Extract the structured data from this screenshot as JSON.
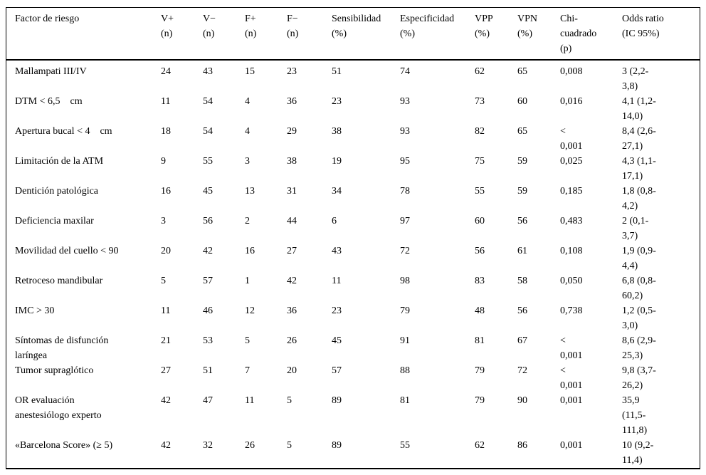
{
  "colors": {
    "text": "#000000",
    "rule": "#000000",
    "background": "#ffffff"
  },
  "table": {
    "columns": [
      {
        "key": "factor",
        "label": "Factor de riesgo"
      },
      {
        "key": "v_pos",
        "label": "V+\n(n)"
      },
      {
        "key": "v_neg",
        "label": "V−\n(n)"
      },
      {
        "key": "f_pos",
        "label": "F+\n(n)"
      },
      {
        "key": "f_neg",
        "label": "F−\n(n)"
      },
      {
        "key": "sensibilidad",
        "label": "Sensibilidad\n(%)"
      },
      {
        "key": "especificidad",
        "label": "Especificidad\n(%)"
      },
      {
        "key": "vpp",
        "label": "VPP\n(%)"
      },
      {
        "key": "vpn",
        "label": "VPN\n(%)"
      },
      {
        "key": "chi_p",
        "label": "Chi-\ncuadrado\n(p)"
      },
      {
        "key": "odds_ratio",
        "label": "Odds ratio\n(IC 95%)"
      }
    ],
    "rows": [
      {
        "factor": "Mallampati III/IV",
        "v_pos": "24",
        "v_neg": "43",
        "f_pos": "15",
        "f_neg": "23",
        "sensibilidad": "51",
        "especificidad": "74",
        "vpp": "62",
        "vpn": "65",
        "chi_p": "0,008",
        "odds_ratio": "3 (2,2-\n3,8)"
      },
      {
        "factor": "DTM < 6,5    cm",
        "v_pos": "11",
        "v_neg": "54",
        "f_pos": "4",
        "f_neg": "36",
        "sensibilidad": "23",
        "especificidad": "93",
        "vpp": "73",
        "vpn": "60",
        "chi_p": "0,016",
        "odds_ratio": "4,1 (1,2-\n14,0)"
      },
      {
        "factor": "Apertura bucal < 4    cm",
        "v_pos": "18",
        "v_neg": "54",
        "f_pos": "4",
        "f_neg": "29",
        "sensibilidad": "38",
        "especificidad": "93",
        "vpp": "82",
        "vpn": "65",
        "chi_p": "<\n0,001",
        "odds_ratio": "8,4 (2,6-\n27,1)"
      },
      {
        "factor": "Limitación de la ATM",
        "v_pos": "9",
        "v_neg": "55",
        "f_pos": "3",
        "f_neg": "38",
        "sensibilidad": "19",
        "especificidad": "95",
        "vpp": "75",
        "vpn": "59",
        "chi_p": "0,025",
        "odds_ratio": "4,3 (1,1-\n17,1)"
      },
      {
        "factor": "Dentición patológica",
        "v_pos": "16",
        "v_neg": "45",
        "f_pos": "13",
        "f_neg": "31",
        "sensibilidad": "34",
        "especificidad": "78",
        "vpp": "55",
        "vpn": "59",
        "chi_p": "0,185",
        "odds_ratio": "1,8 (0,8-\n4,2)"
      },
      {
        "factor": "Deficiencia maxilar",
        "v_pos": "3",
        "v_neg": "56",
        "f_pos": "2",
        "f_neg": "44",
        "sensibilidad": "6",
        "especificidad": "97",
        "vpp": "60",
        "vpn": "56",
        "chi_p": "0,483",
        "odds_ratio": "2 (0,1-\n3,7)"
      },
      {
        "factor": "Movilidad del cuello < 90",
        "v_pos": "20",
        "v_neg": "42",
        "f_pos": "16",
        "f_neg": "27",
        "sensibilidad": "43",
        "especificidad": "72",
        "vpp": "56",
        "vpn": "61",
        "chi_p": "0,108",
        "odds_ratio": "1,9 (0,9-\n4,4)"
      },
      {
        "factor": "Retroceso mandibular",
        "v_pos": "5",
        "v_neg": "57",
        "f_pos": "1",
        "f_neg": "42",
        "sensibilidad": "11",
        "especificidad": "98",
        "vpp": "83",
        "vpn": "58",
        "chi_p": "0,050",
        "odds_ratio": "6,8 (0,8-\n60,2)"
      },
      {
        "factor": "IMC > 30",
        "v_pos": "11",
        "v_neg": "46",
        "f_pos": "12",
        "f_neg": "36",
        "sensibilidad": "23",
        "especificidad": "79",
        "vpp": "48",
        "vpn": "56",
        "chi_p": "0,738",
        "odds_ratio": "1,2 (0,5-\n3,0)"
      },
      {
        "factor": "Síntomas de disfunción\nlaríngea",
        "v_pos": "21",
        "v_neg": "53",
        "f_pos": "5",
        "f_neg": "26",
        "sensibilidad": "45",
        "especificidad": "91",
        "vpp": "81",
        "vpn": "67",
        "chi_p": "<\n0,001",
        "odds_ratio": "8,6 (2,9-\n25,3)"
      },
      {
        "factor": "Tumor supraglótico",
        "v_pos": "27",
        "v_neg": "51",
        "f_pos": "7",
        "f_neg": "20",
        "sensibilidad": "57",
        "especificidad": "88",
        "vpp": "79",
        "vpn": "72",
        "chi_p": "<\n0,001",
        "odds_ratio": "9,8 (3,7-\n26,2)"
      },
      {
        "factor": "OR evaluación\nanestesiólogo experto",
        "v_pos": "42",
        "v_neg": "47",
        "f_pos": "11",
        "f_neg": "5",
        "sensibilidad": "89",
        "especificidad": "81",
        "vpp": "79",
        "vpn": "90",
        "chi_p": "0,001",
        "odds_ratio": "35,9\n(11,5-\n111,8)"
      },
      {
        "factor": "«Barcelona Score» (≥ 5)",
        "v_pos": "42",
        "v_neg": "32",
        "f_pos": "26",
        "f_neg": "5",
        "sensibilidad": "89",
        "especificidad": "55",
        "vpp": "62",
        "vpn": "86",
        "chi_p": "0,001",
        "odds_ratio": "10 (9,2-\n11,4)"
      }
    ]
  }
}
